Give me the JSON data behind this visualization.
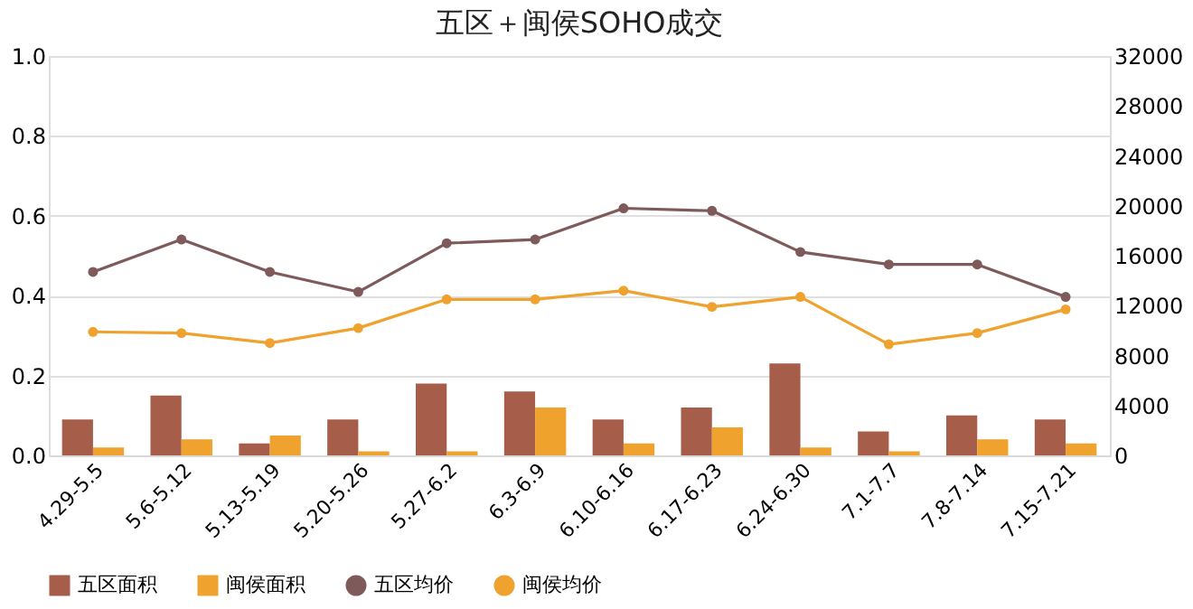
{
  "chart_data": {
    "type": "bar",
    "title": "五区＋闽侯SOHO成交",
    "categories": [
      "4.29-5.5",
      "5.6-5.12",
      "5.13-5.19",
      "5.20-5.26",
      "5.27-6.2",
      "6.3-6.9",
      "6.10-6.16",
      "6.17-6.23",
      "6.24-6.30",
      "7.1-7.7",
      "7.8-7.14",
      "7.15-7.21"
    ],
    "series": [
      {
        "name": "五区面积",
        "color": "#a65e4b",
        "values": [
          0.09,
          0.15,
          0.03,
          0.09,
          0.18,
          0.16,
          0.09,
          0.12,
          0.23,
          0.06,
          0.1,
          0.09
        ]
      },
      {
        "name": "闽侯面积",
        "color": "#f0a22e",
        "values": [
          0.02,
          0.04,
          0.05,
          0.01,
          0.01,
          0.12,
          0.03,
          0.07,
          0.02,
          0.01,
          0.04,
          0.03
        ]
      },
      {
        "name": "五区均价",
        "color": "#7e5a5a",
        "type": "line",
        "axis": "y2",
        "marker": "circle",
        "values": [
          14700,
          17300,
          14700,
          13100,
          17000,
          17300,
          19800,
          19600,
          16300,
          15300,
          15300,
          12700
        ]
      },
      {
        "name": "闽侯均价",
        "color": "#f0a22e",
        "type": "line",
        "axis": "y2",
        "marker": "circle",
        "values": [
          9900,
          9800,
          9000,
          10200,
          12500,
          12500,
          13200,
          11900,
          12700,
          8900,
          9800,
          11700
        ]
      }
    ],
    "ylim": [
      0,
      1.0
    ],
    "yticks": [
      {
        "value": 0,
        "label": "0.0"
      },
      0.2,
      0.4,
      0.6,
      0.8,
      {
        "value": 1.0,
        "label": "1.0"
      }
    ],
    "y2lim": [
      0,
      32000
    ],
    "y2ticks": [
      0,
      4000,
      8000,
      12000,
      16000,
      20000,
      24000,
      28000,
      32000
    ],
    "grid": "y",
    "legend": "bottom"
  }
}
